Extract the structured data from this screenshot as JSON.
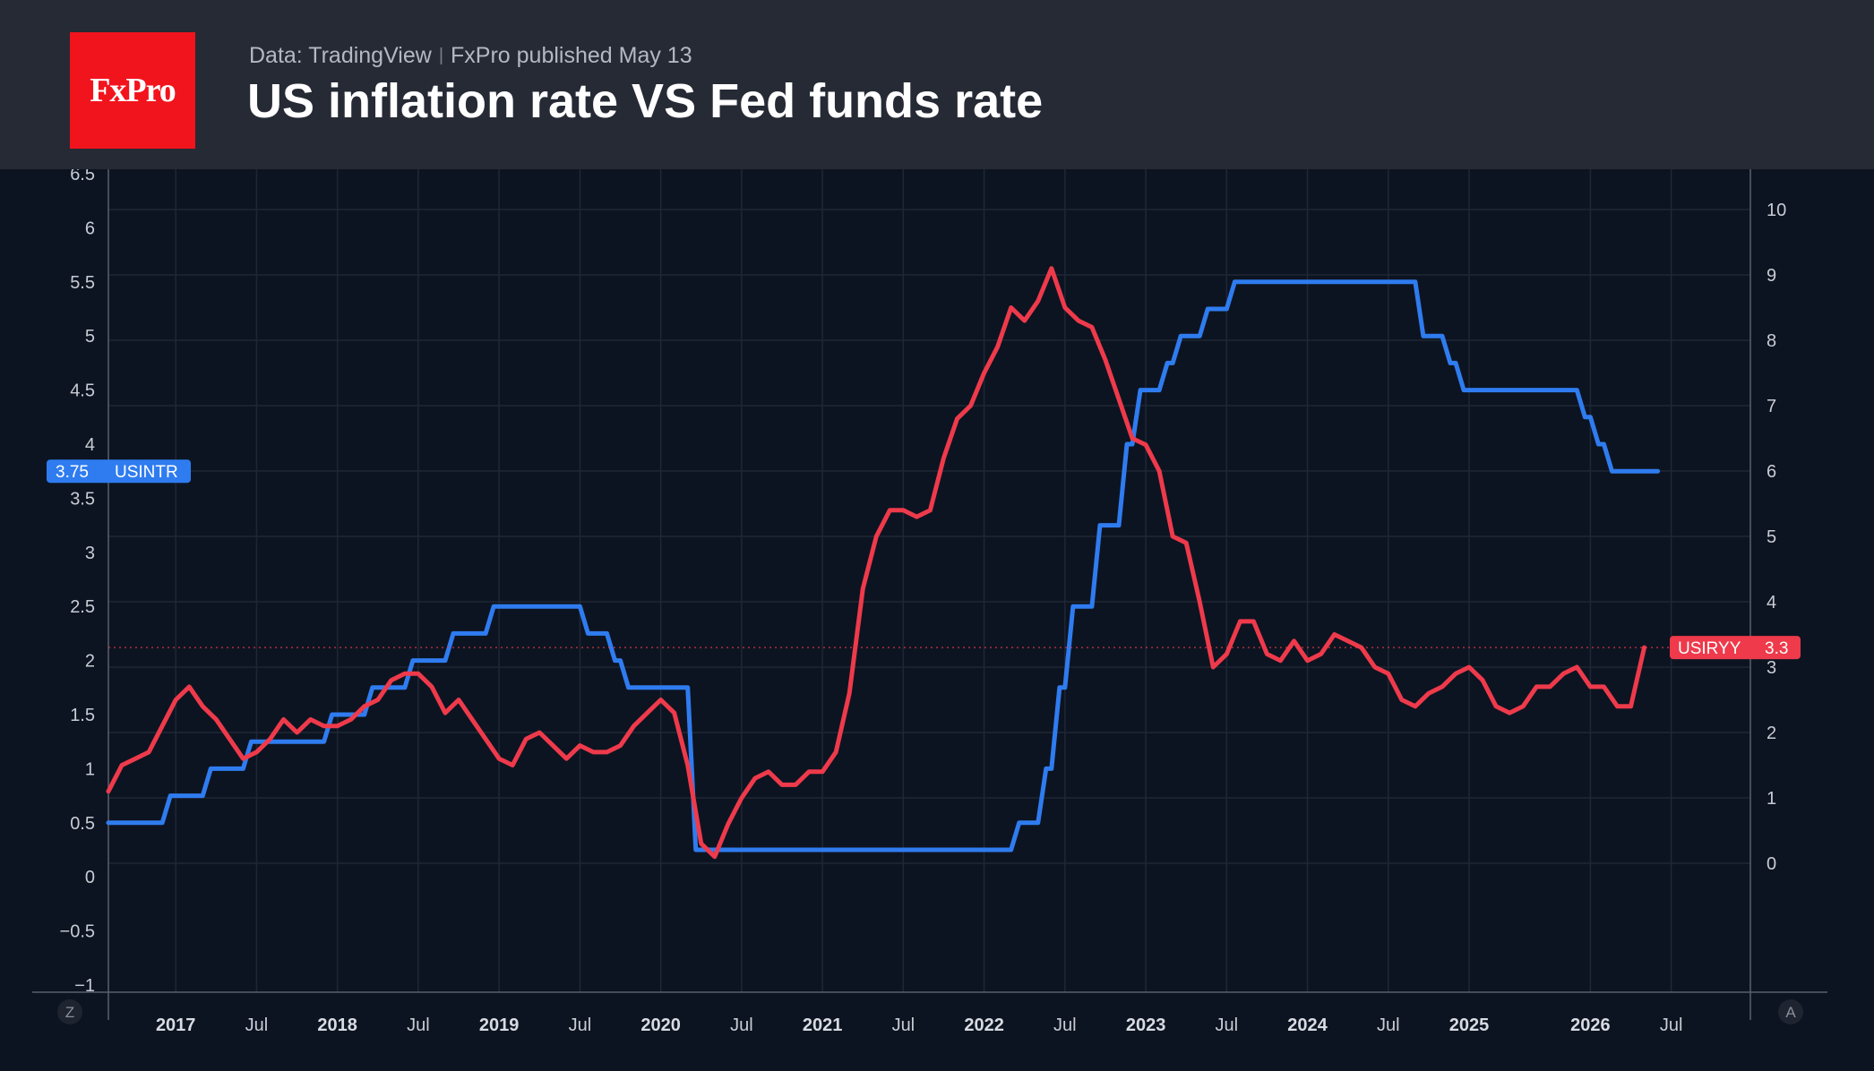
{
  "header": {
    "logo_text": "FxPro",
    "source": "Data: TradingView",
    "published": "FxPro published May 13",
    "title": "US inflation rate VS Fed funds rate"
  },
  "colors": {
    "header_bg": "#262a35",
    "chart_bg": "#0d1421",
    "logo_bg": "#f2141d",
    "fed_rate": "#2f7cf0",
    "inflation": "#ee3a4b"
  },
  "corner_buttons": {
    "left": "Z",
    "right": "A"
  },
  "chart_data": {
    "type": "line",
    "title": "US inflation rate VS Fed funds rate",
    "grid": true,
    "x_tick_labels": [
      "2017",
      "Jul",
      "2018",
      "Jul",
      "2019",
      "Jul",
      "2020",
      "Jul",
      "2021",
      "Jul",
      "2022",
      "Jul",
      "2023",
      "Jul",
      "2024",
      "Jul",
      "2025",
      "2026",
      "Jul"
    ],
    "left_axis": {
      "ylim": [
        -1,
        6.5
      ],
      "ticks": [
        "6.5",
        "6",
        "5.5",
        "5",
        "4.5",
        "4",
        "3.5",
        "3",
        "2.5",
        "2",
        "1.5",
        "1",
        "0.5",
        "0",
        "−0.5",
        "−1"
      ]
    },
    "right_axis": {
      "ylim": [
        -1.0,
        10.5
      ],
      "ticks": [
        "10",
        "9",
        "8",
        "7",
        "6",
        "5",
        "4",
        "3",
        "2",
        "1",
        "0"
      ]
    },
    "series": [
      {
        "name": "USINTR",
        "axis": "left",
        "last_value": "3.75",
        "points": [
          [
            "2016-08",
            0.5
          ],
          [
            "2016-09",
            0.5
          ],
          [
            "2016-10",
            0.5
          ],
          [
            "2016-11",
            0.5
          ],
          [
            "2016-12",
            0.75
          ],
          [
            "2017-01",
            0.75
          ],
          [
            "2017-02",
            0.75
          ],
          [
            "2017-03",
            1.0
          ],
          [
            "2017-04",
            1.0
          ],
          [
            "2017-05",
            1.0
          ],
          [
            "2017-06",
            1.25
          ],
          [
            "2017-07",
            1.25
          ],
          [
            "2017-08",
            1.25
          ],
          [
            "2017-09",
            1.25
          ],
          [
            "2017-10",
            1.25
          ],
          [
            "2017-11",
            1.25
          ],
          [
            "2017-12",
            1.5
          ],
          [
            "2018-01",
            1.5
          ],
          [
            "2018-02",
            1.5
          ],
          [
            "2018-03",
            1.75
          ],
          [
            "2018-04",
            1.75
          ],
          [
            "2018-05",
            1.75
          ],
          [
            "2018-06",
            2.0
          ],
          [
            "2018-07",
            2.0
          ],
          [
            "2018-08",
            2.0
          ],
          [
            "2018-09",
            2.25
          ],
          [
            "2018-10",
            2.25
          ],
          [
            "2018-11",
            2.25
          ],
          [
            "2018-12",
            2.5
          ],
          [
            "2019-01",
            2.5
          ],
          [
            "2019-02",
            2.5
          ],
          [
            "2019-03",
            2.5
          ],
          [
            "2019-04",
            2.5
          ],
          [
            "2019-05",
            2.5
          ],
          [
            "2019-06",
            2.5
          ],
          [
            "2019-07",
            2.25
          ],
          [
            "2019-08",
            2.25
          ],
          [
            "2019-09",
            2.0
          ],
          [
            "2019-10",
            1.75
          ],
          [
            "2019-11",
            1.75
          ],
          [
            "2019-12",
            1.75
          ],
          [
            "2020-01",
            1.75
          ],
          [
            "2020-02",
            1.75
          ],
          [
            "2020-03",
            0.25
          ],
          [
            "2020-04",
            0.25
          ],
          [
            "2020-05",
            0.25
          ],
          [
            "2020-06",
            0.25
          ],
          [
            "2020-07",
            0.25
          ],
          [
            "2020-08",
            0.25
          ],
          [
            "2020-09",
            0.25
          ],
          [
            "2020-10",
            0.25
          ],
          [
            "2020-11",
            0.25
          ],
          [
            "2020-12",
            0.25
          ],
          [
            "2021-01",
            0.25
          ],
          [
            "2021-02",
            0.25
          ],
          [
            "2021-03",
            0.25
          ],
          [
            "2021-04",
            0.25
          ],
          [
            "2021-05",
            0.25
          ],
          [
            "2021-06",
            0.25
          ],
          [
            "2021-07",
            0.25
          ],
          [
            "2021-08",
            0.25
          ],
          [
            "2021-09",
            0.25
          ],
          [
            "2021-10",
            0.25
          ],
          [
            "2021-11",
            0.25
          ],
          [
            "2021-12",
            0.25
          ],
          [
            "2022-01",
            0.25
          ],
          [
            "2022-02",
            0.25
          ],
          [
            "2022-03",
            0.5
          ],
          [
            "2022-04",
            0.5
          ],
          [
            "2022-05",
            1.0
          ],
          [
            "2022-06",
            1.75
          ],
          [
            "2022-07",
            2.5
          ],
          [
            "2022-08",
            2.5
          ],
          [
            "2022-09",
            3.25
          ],
          [
            "2022-10",
            3.25
          ],
          [
            "2022-11",
            4.0
          ],
          [
            "2022-12",
            4.5
          ],
          [
            "2023-01",
            4.5
          ],
          [
            "2023-02",
            4.75
          ],
          [
            "2023-03",
            5.0
          ],
          [
            "2023-04",
            5.0
          ],
          [
            "2023-05",
            5.25
          ],
          [
            "2023-06",
            5.25
          ],
          [
            "2023-07",
            5.5
          ],
          [
            "2023-08",
            5.5
          ],
          [
            "2023-09",
            5.5
          ],
          [
            "2023-10",
            5.5
          ],
          [
            "2023-11",
            5.5
          ],
          [
            "2023-12",
            5.5
          ],
          [
            "2024-01",
            5.5
          ],
          [
            "2024-02",
            5.5
          ],
          [
            "2024-03",
            5.5
          ],
          [
            "2024-04",
            5.5
          ],
          [
            "2024-05",
            5.5
          ],
          [
            "2024-06",
            5.5
          ],
          [
            "2024-07",
            5.5
          ],
          [
            "2024-08",
            5.5
          ],
          [
            "2024-09",
            5.0
          ],
          [
            "2024-10",
            5.0
          ],
          [
            "2024-11",
            4.75
          ],
          [
            "2024-12",
            4.5
          ],
          [
            "2025-01",
            4.5
          ],
          [
            "2025-02",
            4.5
          ],
          [
            "2025-03",
            4.5
          ],
          [
            "2025-04",
            4.5
          ],
          [
            "2025-05",
            4.5
          ],
          [
            "2025-06",
            4.5
          ],
          [
            "2025-07",
            4.5
          ],
          [
            "2025-08",
            4.5
          ],
          [
            "2025-09",
            4.25
          ],
          [
            "2025-10",
            4.0
          ],
          [
            "2025-11",
            3.75
          ],
          [
            "2025-12",
            3.75
          ],
          [
            "2026-01",
            3.75
          ],
          [
            "2026-02",
            3.75
          ],
          [
            "2026-03",
            3.75
          ]
        ]
      },
      {
        "name": "USIRYY",
        "axis": "right",
        "last_value": "3.3",
        "points": [
          [
            "2016-08",
            1.1
          ],
          [
            "2016-09",
            1.5
          ],
          [
            "2016-10",
            1.6
          ],
          [
            "2016-11",
            1.7
          ],
          [
            "2016-12",
            2.1
          ],
          [
            "2017-01",
            2.5
          ],
          [
            "2017-02",
            2.7
          ],
          [
            "2017-03",
            2.4
          ],
          [
            "2017-04",
            2.2
          ],
          [
            "2017-05",
            1.9
          ],
          [
            "2017-06",
            1.6
          ],
          [
            "2017-07",
            1.7
          ],
          [
            "2017-08",
            1.9
          ],
          [
            "2017-09",
            2.2
          ],
          [
            "2017-10",
            2.0
          ],
          [
            "2017-11",
            2.2
          ],
          [
            "2017-12",
            2.1
          ],
          [
            "2018-01",
            2.1
          ],
          [
            "2018-02",
            2.2
          ],
          [
            "2018-03",
            2.4
          ],
          [
            "2018-04",
            2.5
          ],
          [
            "2018-05",
            2.8
          ],
          [
            "2018-06",
            2.9
          ],
          [
            "2018-07",
            2.9
          ],
          [
            "2018-08",
            2.7
          ],
          [
            "2018-09",
            2.3
          ],
          [
            "2018-10",
            2.5
          ],
          [
            "2018-11",
            2.2
          ],
          [
            "2018-12",
            1.9
          ],
          [
            "2019-01",
            1.6
          ],
          [
            "2019-02",
            1.5
          ],
          [
            "2019-03",
            1.9
          ],
          [
            "2019-04",
            2.0
          ],
          [
            "2019-05",
            1.8
          ],
          [
            "2019-06",
            1.6
          ],
          [
            "2019-07",
            1.8
          ],
          [
            "2019-08",
            1.7
          ],
          [
            "2019-09",
            1.7
          ],
          [
            "2019-10",
            1.8
          ],
          [
            "2019-11",
            2.1
          ],
          [
            "2019-12",
            2.3
          ],
          [
            "2020-01",
            2.5
          ],
          [
            "2020-02",
            2.3
          ],
          [
            "2020-03",
            1.5
          ],
          [
            "2020-04",
            0.3
          ],
          [
            "2020-05",
            0.1
          ],
          [
            "2020-06",
            0.6
          ],
          [
            "2020-07",
            1.0
          ],
          [
            "2020-08",
            1.3
          ],
          [
            "2020-09",
            1.4
          ],
          [
            "2020-10",
            1.2
          ],
          [
            "2020-11",
            1.2
          ],
          [
            "2020-12",
            1.4
          ],
          [
            "2021-01",
            1.4
          ],
          [
            "2021-02",
            1.7
          ],
          [
            "2021-03",
            2.6
          ],
          [
            "2021-04",
            4.2
          ],
          [
            "2021-05",
            5.0
          ],
          [
            "2021-06",
            5.4
          ],
          [
            "2021-07",
            5.4
          ],
          [
            "2021-08",
            5.3
          ],
          [
            "2021-09",
            5.4
          ],
          [
            "2021-10",
            6.2
          ],
          [
            "2021-11",
            6.8
          ],
          [
            "2021-12",
            7.0
          ],
          [
            "2022-01",
            7.5
          ],
          [
            "2022-02",
            7.9
          ],
          [
            "2022-03",
            8.5
          ],
          [
            "2022-04",
            8.3
          ],
          [
            "2022-05",
            8.6
          ],
          [
            "2022-06",
            9.1
          ],
          [
            "2022-07",
            8.5
          ],
          [
            "2022-08",
            8.3
          ],
          [
            "2022-09",
            8.2
          ],
          [
            "2022-10",
            7.7
          ],
          [
            "2022-11",
            7.1
          ],
          [
            "2022-12",
            6.5
          ],
          [
            "2023-01",
            6.4
          ],
          [
            "2023-02",
            6.0
          ],
          [
            "2023-03",
            5.0
          ],
          [
            "2023-04",
            4.9
          ],
          [
            "2023-05",
            4.0
          ],
          [
            "2023-06",
            3.0
          ],
          [
            "2023-07",
            3.2
          ],
          [
            "2023-08",
            3.7
          ],
          [
            "2023-09",
            3.7
          ],
          [
            "2023-10",
            3.2
          ],
          [
            "2023-11",
            3.1
          ],
          [
            "2023-12",
            3.4
          ],
          [
            "2024-01",
            3.1
          ],
          [
            "2024-02",
            3.2
          ],
          [
            "2024-03",
            3.5
          ],
          [
            "2024-04",
            3.4
          ],
          [
            "2024-05",
            3.3
          ],
          [
            "2024-06",
            3.0
          ],
          [
            "2024-07",
            2.9
          ],
          [
            "2024-08",
            2.5
          ],
          [
            "2024-09",
            2.4
          ],
          [
            "2024-10",
            2.6
          ],
          [
            "2024-11",
            2.7
          ],
          [
            "2024-12",
            2.9
          ],
          [
            "2025-01",
            3.0
          ],
          [
            "2025-02",
            2.8
          ],
          [
            "2025-03",
            2.4
          ],
          [
            "2025-04",
            2.3
          ],
          [
            "2025-05",
            2.4
          ],
          [
            "2025-06",
            2.7
          ],
          [
            "2025-07",
            2.7
          ],
          [
            "2025-08",
            2.9
          ],
          [
            "2025-09",
            3.0
          ],
          [
            "2025-10",
            2.7
          ],
          [
            "2025-11",
            2.7
          ],
          [
            "2025-12",
            2.4
          ],
          [
            "2026-01",
            2.4
          ],
          [
            "2026-02",
            3.3
          ]
        ]
      }
    ]
  }
}
